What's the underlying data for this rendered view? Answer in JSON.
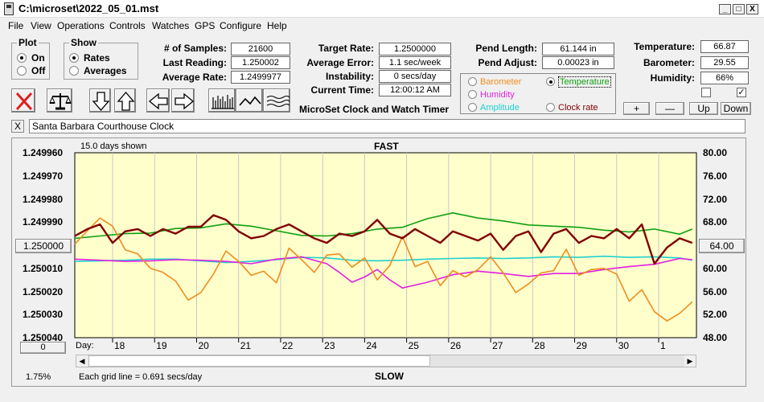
{
  "window": {
    "title": "C:\\microset\\2022_05_01.mst",
    "minimize": "_",
    "maximize": "□",
    "close": "X"
  },
  "menu": [
    "File",
    "View",
    "Operations",
    "Controls",
    "Watches",
    "GPS",
    "Configure",
    "Help"
  ],
  "plot_group": {
    "title": "Plot",
    "options": [
      "On",
      "Off"
    ],
    "selected": "On"
  },
  "show_group": {
    "title": "Show",
    "options": [
      "Rates",
      "Averages"
    ],
    "selected": "Rates"
  },
  "stats": {
    "samples_label": "# of Samples:",
    "samples": "21600",
    "last_reading_label": "Last Reading:",
    "last_reading": "1.250002",
    "avg_rate_label": "Average Rate:",
    "avg_rate": "1.2499977",
    "target_rate_label": "Target Rate:",
    "target_rate": "1.2500000",
    "avg_error_label": "Average Error:",
    "avg_error": "1.1 sec/week",
    "instability_label": "Instability:",
    "instability": "0 secs/day",
    "current_time_label": "Current Time:",
    "current_time": "12:00:12 AM"
  },
  "app_subtitle": "MicroSet Clock and Watch Timer",
  "pend": {
    "length_label": "Pend Length:",
    "length": "61.144 in",
    "adjust_label": "Pend Adjust:",
    "adjust": "0.00023 in"
  },
  "plot_options": {
    "items": [
      {
        "label": "Barometer",
        "color": "#f08c1e",
        "selected": false
      },
      {
        "label": "Temperature",
        "color": "#10a010",
        "selected": true
      },
      {
        "label": "Humidity",
        "color": "#e020e0",
        "selected": false
      },
      {
        "label": "Amplitude",
        "color": "#20d0d0",
        "selected": false
      },
      {
        "label": "Clock rate",
        "color": "#800000",
        "selected": false
      }
    ]
  },
  "env": {
    "temperature_label": "Temperature:",
    "temperature": "66.87",
    "barometer_label": "Barometer:",
    "barometer": "29.55",
    "humidity_label": "Humidity:",
    "humidity": "66%"
  },
  "adjust_buttons": {
    "plus": "+",
    "minus": "—",
    "up": "Up",
    "down": "Down"
  },
  "checkboxes": [
    {
      "checked": false
    },
    {
      "checked": true
    }
  ],
  "watch_name": "Santa Barbara Courthouse Clock",
  "close_watch": "X",
  "chart_data": {
    "type": "line",
    "days_shown": "15.0 days shown",
    "top_label": "FAST",
    "bottom_label": "SLOW",
    "left_axis": {
      "ticks": [
        "1.249960",
        "1.249970",
        "1.249980",
        "1.249990",
        "1.250000",
        "1.250010",
        "1.250020",
        "1.250030",
        "1.250040"
      ],
      "range": [
        1.24996,
        1.25004
      ],
      "inverted": true
    },
    "right_axis": {
      "ticks": [
        "80.00",
        "76.00",
        "72.00",
        "68.00",
        "64.00",
        "60.00",
        "56.00",
        "52.00",
        "48.00"
      ],
      "range": [
        48,
        80
      ]
    },
    "left_center_button": "1.250000",
    "right_center_button": "64.00",
    "bottom_left_button": "0",
    "x_prefix": "Day:",
    "x_ticks": [
      "18",
      "19",
      "20",
      "21",
      "22",
      "23",
      "24",
      "25",
      "26",
      "27",
      "28",
      "29",
      "30",
      "1"
    ],
    "x_range": [
      17.1,
      31.9
    ],
    "grid_note": "Each grid line = 0.691 secs/day",
    "percent": "1.75%",
    "plot_bg": "#ffffcc",
    "series": [
      {
        "key": "clock",
        "color": "#800000",
        "width": 2.4,
        "x": [
          17.1,
          17.4,
          17.7,
          18.0,
          18.3,
          18.6,
          18.9,
          19.2,
          19.5,
          19.8,
          20.1,
          20.4,
          20.7,
          21.0,
          21.3,
          21.6,
          21.9,
          22.2,
          22.5,
          22.8,
          23.1,
          23.4,
          23.7,
          24.0,
          24.3,
          24.6,
          24.9,
          25.2,
          25.5,
          25.8,
          26.1,
          26.4,
          26.7,
          27.0,
          27.3,
          27.6,
          27.9,
          28.2,
          28.5,
          28.8,
          29.1,
          29.4,
          29.7,
          30.0,
          30.3,
          30.6,
          30.9,
          31.2,
          31.5,
          31.8
        ],
        "y": [
          1.249996,
          1.249993,
          1.249991,
          1.249999,
          1.249994,
          1.249993,
          1.249996,
          1.249993,
          1.249995,
          1.249992,
          1.249992,
          1.249987,
          1.249989,
          1.249994,
          1.249997,
          1.249996,
          1.249993,
          1.249991,
          1.249994,
          1.249997,
          1.249999,
          1.249995,
          1.249996,
          1.249994,
          1.249989,
          1.249995,
          1.249997,
          1.249993,
          1.249996,
          1.249999,
          1.249994,
          1.249996,
          1.249998,
          1.249995,
          1.250002,
          1.249996,
          1.249994,
          1.250003,
          1.249995,
          1.249993,
          1.249999,
          1.249996,
          1.249997,
          1.249993,
          1.249997,
          1.249991,
          1.250008,
          1.250001,
          1.249997,
          1.249999
        ]
      },
      {
        "key": "temperature",
        "color": "#10a010",
        "width": 1.6,
        "x": [
          17.1,
          17.7,
          18.3,
          18.9,
          19.5,
          20.1,
          20.7,
          21.3,
          21.9,
          22.5,
          23.1,
          23.7,
          24.3,
          24.9,
          25.5,
          26.1,
          26.7,
          27.3,
          27.9,
          28.5,
          29.1,
          29.7,
          30.3,
          30.9,
          31.5,
          31.8
        ],
        "y": [
          65.2,
          65.6,
          66.0,
          66.1,
          66.9,
          67.0,
          67.7,
          67.3,
          66.5,
          65.7,
          65.6,
          66.0,
          66.8,
          67.1,
          68.6,
          69.6,
          68.7,
          68.2,
          67.5,
          67.3,
          67.1,
          66.6,
          66.3,
          66.8,
          65.9,
          66.8
        ]
      },
      {
        "key": "amplitude",
        "color": "#20d0d0",
        "width": 1.6,
        "x": [
          17.1,
          17.7,
          18.3,
          18.9,
          19.5,
          20.1,
          20.7,
          21.3,
          21.9,
          22.5,
          23.1,
          23.7,
          24.3,
          24.9,
          25.5,
          26.1,
          26.7,
          27.3,
          27.9,
          28.5,
          29.1,
          29.7,
          30.3,
          30.9,
          31.5,
          31.8
        ],
        "y": [
          61.2,
          61.3,
          61.4,
          61.6,
          61.6,
          61.3,
          61.0,
          61.2,
          61.5,
          61.9,
          61.8,
          61.4,
          61.3,
          61.4,
          61.6,
          61.7,
          61.8,
          61.7,
          61.8,
          62.0,
          61.9,
          62.1,
          61.9,
          62.0,
          61.8,
          61.4
        ]
      },
      {
        "key": "humidity",
        "color": "#e020e0",
        "width": 1.6,
        "x": [
          17.1,
          17.7,
          18.3,
          18.9,
          19.5,
          20.1,
          20.7,
          21.3,
          21.9,
          22.5,
          23.1,
          23.4,
          23.7,
          24.0,
          24.3,
          24.6,
          24.9,
          25.5,
          26.1,
          26.7,
          27.3,
          27.9,
          28.5,
          29.1,
          29.7,
          30.3,
          30.9,
          31.5,
          31.8
        ],
        "y": [
          61.6,
          61.4,
          61.2,
          61.3,
          61.5,
          61.4,
          61.2,
          60.8,
          61.6,
          62.0,
          60.8,
          59.3,
          57.6,
          58.5,
          59.8,
          58.0,
          56.6,
          57.6,
          58.9,
          59.5,
          59.1,
          58.6,
          59.1,
          59.1,
          59.8,
          60.3,
          60.7,
          61.7,
          61.5
        ]
      },
      {
        "key": "barometer",
        "color": "#f08c1e",
        "width": 1.6,
        "x": [
          17.1,
          17.4,
          17.7,
          18.0,
          18.3,
          18.6,
          18.9,
          19.2,
          19.5,
          19.8,
          20.1,
          20.4,
          20.7,
          21.0,
          21.3,
          21.6,
          21.9,
          22.2,
          22.5,
          22.8,
          23.1,
          23.4,
          23.7,
          24.0,
          24.3,
          24.6,
          24.9,
          25.2,
          25.5,
          25.8,
          26.1,
          26.4,
          26.7,
          27.0,
          27.3,
          27.6,
          27.9,
          28.2,
          28.5,
          28.8,
          29.1,
          29.4,
          29.7,
          30.0,
          30.3,
          30.6,
          30.9,
          31.2,
          31.5,
          31.8
        ],
        "y": [
          64.2,
          66.5,
          68.7,
          67.3,
          63.2,
          62.5,
          60.0,
          59.3,
          57.8,
          54.5,
          55.8,
          59.0,
          63.0,
          61.2,
          58.8,
          59.5,
          57.5,
          63.5,
          61.5,
          59.3,
          62.3,
          62.5,
          60.2,
          61.8,
          58.0,
          60.5,
          65.5,
          60.3,
          61.2,
          57.0,
          59.6,
          58.5,
          59.8,
          62.0,
          59.2,
          55.8,
          57.3,
          59.2,
          59.6,
          63.3,
          58.8,
          59.8,
          60.0,
          59.0,
          54.3,
          56.3,
          52.5,
          50.9,
          52.2,
          54.2
        ]
      }
    ]
  }
}
